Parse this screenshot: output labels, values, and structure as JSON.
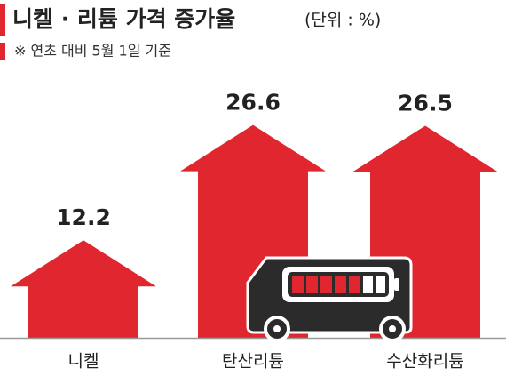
{
  "chart_data": {
    "type": "bar",
    "title": "니켈 · 리튬 가격 증가율",
    "unit": "(단위 : %)",
    "subtitle": "※ 연초 대비 5월 1일 기준",
    "categories": [
      "니켈",
      "탄산리튬",
      "수산화리튬"
    ],
    "values": [
      12.2,
      26.6,
      26.5
    ],
    "color": "#e0262e"
  }
}
